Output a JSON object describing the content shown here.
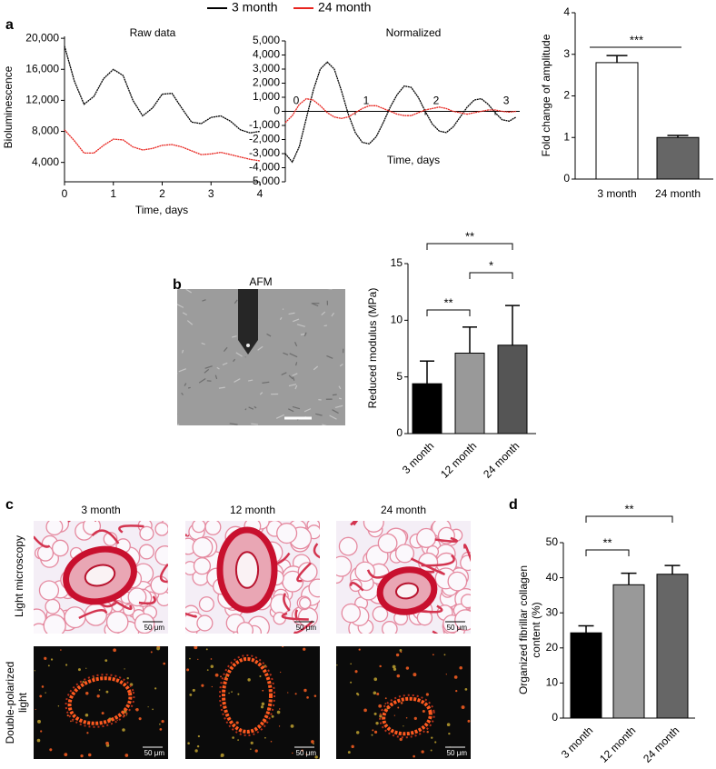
{
  "panel_letters": [
    "a",
    "b",
    "c",
    "d"
  ],
  "afm_label": "AFM",
  "microscopy": {
    "columns": [
      "3 month",
      "12 month",
      "24 month"
    ],
    "rows": [
      "Light microscopy",
      "Double-polarized light"
    ],
    "scale_bar": "50 μm"
  },
  "chart_data": [
    {
      "type": "line",
      "title": "Raw data",
      "xlabel": "Time, days",
      "ylabel": "Bioluminescence",
      "x": [
        0,
        0.2,
        0.4,
        0.6,
        0.8,
        1.0,
        1.2,
        1.4,
        1.6,
        1.8,
        2.0,
        2.2,
        2.4,
        2.6,
        2.8,
        3.0,
        3.2,
        3.4,
        3.6,
        3.8,
        4.0
      ],
      "xlim": [
        0,
        4
      ],
      "xticks": [
        0,
        1,
        2,
        3,
        4
      ],
      "ylim": [
        1500,
        20250
      ],
      "yticks": [
        {
          "value": 4000,
          "label": "4,000"
        },
        {
          "value": 8000,
          "label": "8,000"
        },
        {
          "value": 12000,
          "label": "12,000"
        },
        {
          "value": 16000,
          "label": "16,000"
        },
        {
          "value": 20000,
          "label": "20,000"
        }
      ],
      "series": [
        {
          "name": "3 month",
          "color": "#000000",
          "values": [
            19000,
            14500,
            11500,
            12500,
            14800,
            16000,
            15200,
            12000,
            10000,
            11000,
            12800,
            12900,
            11000,
            9200,
            9000,
            9800,
            10000,
            9300,
            8200,
            7800,
            8000
          ]
        },
        {
          "name": "24 month",
          "color": "#e8251f",
          "values": [
            8200,
            6800,
            5200,
            5200,
            6200,
            7000,
            6900,
            6000,
            5600,
            5800,
            6200,
            6300,
            6000,
            5500,
            5000,
            5100,
            5300,
            5000,
            4700,
            4400,
            4200
          ]
        }
      ]
    },
    {
      "type": "line",
      "title": "Normalized",
      "xlabel": "Time, days",
      "x": [
        0,
        0.1,
        0.2,
        0.3,
        0.4,
        0.5,
        0.6,
        0.7,
        0.8,
        0.9,
        1.0,
        1.1,
        1.2,
        1.3,
        1.4,
        1.5,
        1.6,
        1.7,
        1.8,
        1.9,
        2.0,
        2.1,
        2.2,
        2.3,
        2.4,
        2.5,
        2.6,
        2.7,
        2.8,
        2.9,
        3.0,
        3.1,
        3.2,
        3.3
      ],
      "xlim": [
        0,
        3.35
      ],
      "xticks": [
        0,
        1,
        2,
        3
      ],
      "ylim": [
        -5000,
        5000
      ],
      "yticks": [
        {
          "value": -5000,
          "label": "-5,000"
        },
        {
          "value": -4000,
          "label": "-4,000"
        },
        {
          "value": -3000,
          "label": "-3,000"
        },
        {
          "value": -2000,
          "label": "-2,000"
        },
        {
          "value": -1000,
          "label": "-1,000"
        },
        0,
        {
          "value": 1000,
          "label": "1,000"
        },
        {
          "value": 2000,
          "label": "2,000"
        },
        {
          "value": 3000,
          "label": "3,000"
        },
        {
          "value": 4000,
          "label": "4,000"
        },
        {
          "value": 5000,
          "label": "5,000"
        }
      ],
      "series": [
        {
          "name": "3 month",
          "color": "#000000",
          "values": [
            -3000,
            -3600,
            -2500,
            -500,
            1500,
            3000,
            3500,
            3000,
            1500,
            -200,
            -1500,
            -2200,
            -2300,
            -1800,
            -800,
            300,
            1200,
            1800,
            1700,
            1000,
            0,
            -900,
            -1400,
            -1500,
            -1100,
            -400,
            300,
            800,
            900,
            500,
            -100,
            -600,
            -700,
            -400
          ]
        },
        {
          "name": "24 month",
          "color": "#e8251f",
          "values": [
            -800,
            -300,
            500,
            900,
            800,
            400,
            -100,
            -400,
            -500,
            -400,
            -100,
            200,
            400,
            400,
            200,
            0,
            -200,
            -300,
            -300,
            -100,
            100,
            200,
            300,
            200,
            0,
            -100,
            -200,
            -100,
            0,
            100,
            100,
            0,
            -50,
            0
          ]
        }
      ]
    },
    {
      "type": "bar",
      "ylabel": "Fold change of amplitude",
      "categories": [
        "3 month",
        "24 month"
      ],
      "values": [
        2.8,
        1.0
      ],
      "errors": [
        0.17,
        0.05
      ],
      "colors": [
        "#ffffff",
        "#666666"
      ],
      "ylim": [
        0,
        4
      ],
      "yticks": [
        0,
        1,
        2,
        3,
        4
      ],
      "annotations": [
        "***"
      ]
    },
    {
      "type": "bar",
      "ylabel": "Reduced modulus (MPa)",
      "categories": [
        "3 month",
        "12 month",
        "24 month"
      ],
      "values": [
        4.4,
        7.1,
        7.8
      ],
      "errors": [
        2.0,
        2.3,
        3.5
      ],
      "colors": [
        "#000000",
        "#999999",
        "#555555"
      ],
      "ylim": [
        0,
        15
      ],
      "yticks": [
        0,
        5,
        10,
        15
      ],
      "annotations": [
        "**",
        "*",
        "**"
      ]
    },
    {
      "type": "bar",
      "ylabel": "Organized fibrillar collagen content (%)",
      "categories": [
        "3 month",
        "12 month",
        "24 month"
      ],
      "values": [
        24.3,
        38,
        41
      ],
      "errors": [
        2.0,
        3.3,
        2.5
      ],
      "colors": [
        "#000000",
        "#999999",
        "#666666"
      ],
      "ylim": [
        0,
        50
      ],
      "yticks": [
        0,
        10,
        20,
        30,
        40,
        50
      ],
      "annotations": [
        "**",
        "**"
      ]
    }
  ]
}
